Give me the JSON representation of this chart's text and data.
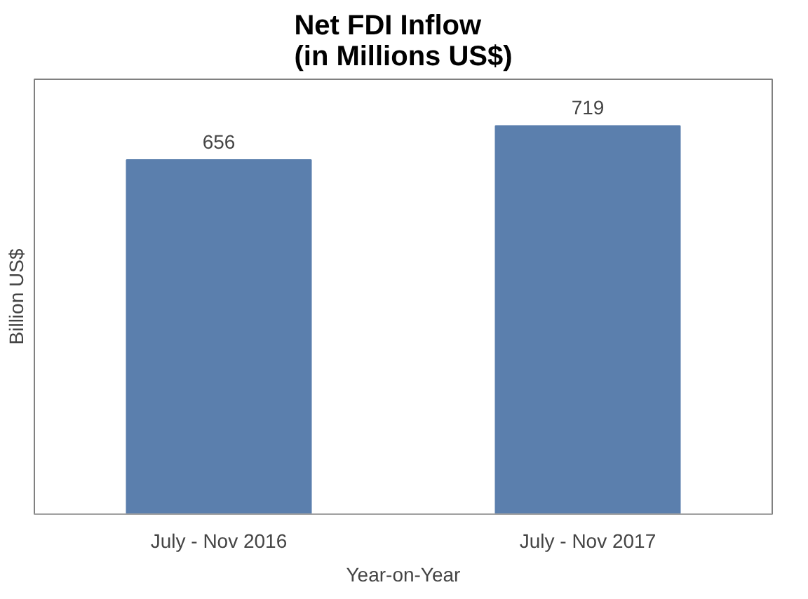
{
  "chart_data": {
    "type": "bar",
    "title": "Net FDI Inflow\n(in Millions US$)",
    "xlabel": "Year-on-Year",
    "ylabel": "Billion US$",
    "categories": [
      "July - Nov 2016",
      "July - Nov 2017"
    ],
    "values": [
      656,
      719
    ],
    "color": "#5b7fad",
    "data_labels": true,
    "grid": false
  }
}
